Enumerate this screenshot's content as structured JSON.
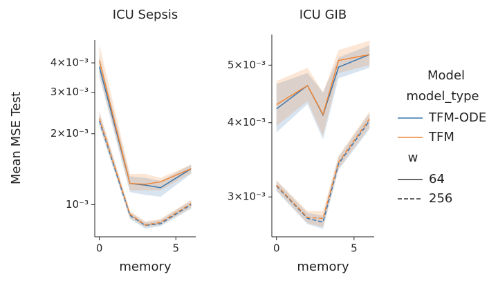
{
  "chart_data": [
    {
      "type": "line",
      "title": "ICU Sepsis",
      "xlabel": "memory",
      "ylabel": "Mean MSE Test",
      "x": [
        0,
        2,
        3,
        4,
        6
      ],
      "xlim": [
        -0.3,
        6.3
      ],
      "xticks": [
        0,
        5
      ],
      "log_y": true,
      "ylim": [
        0.00073,
        0.005
      ],
      "yticks": [
        {
          "value": 0.001,
          "label": "10⁻³"
        },
        {
          "value": 0.002,
          "label": "2×10⁻³"
        },
        {
          "value": 0.003,
          "label": "3×10⁻³"
        },
        {
          "value": 0.004,
          "label": "4×10⁻³"
        }
      ],
      "series": [
        {
          "model_type": "TFM-ODE",
          "w": "64",
          "color": "#3a76af",
          "dash": "solid",
          "values": [
            0.00385,
            0.00123,
            0.00121,
            0.00118,
            0.00142
          ],
          "lower": [
            0.0035,
            0.00113,
            0.0011,
            0.00108,
            0.00135
          ],
          "upper": [
            0.0043,
            0.00132,
            0.0013,
            0.00126,
            0.00148
          ]
        },
        {
          "model_type": "TFM",
          "w": "64",
          "color": "#ef8636",
          "dash": "solid",
          "values": [
            0.00409,
            0.00123,
            0.00122,
            0.00125,
            0.00142
          ],
          "lower": [
            0.0036,
            0.00115,
            0.00115,
            0.00115,
            0.00136
          ],
          "upper": [
            0.0048,
            0.00135,
            0.00135,
            0.0013,
            0.00148
          ]
        },
        {
          "model_type": "TFM-ODE",
          "w": "256",
          "color": "#3a76af",
          "dash": "dashed",
          "values": [
            0.00227,
            0.0009,
            0.000817,
            0.00083,
            0.001
          ],
          "lower": [
            0.00215,
            0.00087,
            0.00079,
            0.00081,
            0.00096
          ],
          "upper": [
            0.00245,
            0.00093,
            0.00084,
            0.00086,
            0.00104
          ]
        },
        {
          "model_type": "TFM",
          "w": "256",
          "color": "#ef8636",
          "dash": "dashed",
          "values": [
            0.00232,
            0.00091,
            0.00082,
            0.00084,
            0.00101
          ],
          "lower": [
            0.0022,
            0.00088,
            0.0008,
            0.00082,
            0.00097
          ],
          "upper": [
            0.0025,
            0.00094,
            0.00085,
            0.00087,
            0.00105
          ]
        }
      ]
    },
    {
      "type": "line",
      "title": "ICU GIB",
      "xlabel": "memory",
      "x": [
        0,
        2,
        3,
        4,
        6
      ],
      "xlim": [
        -0.3,
        6.3
      ],
      "xticks": [
        0,
        5
      ],
      "log_y": true,
      "ylim": [
        0.00257,
        0.00563
      ],
      "yticks": [
        {
          "value": 0.003,
          "label": "3×10⁻³"
        },
        {
          "value": 0.004,
          "label": "4×10⁻³"
        },
        {
          "value": 0.005,
          "label": "5×10⁻³"
        }
      ],
      "series": [
        {
          "model_type": "TFM-ODE",
          "w": "64",
          "color": "#3a76af",
          "dash": "solid",
          "values": [
            0.00422,
            0.00462,
            0.00412,
            0.00496,
            0.00521
          ],
          "lower": [
            0.00385,
            0.0043,
            0.00375,
            0.00475,
            0.00495
          ],
          "upper": [
            0.00465,
            0.00485,
            0.0045,
            0.00515,
            0.0054
          ]
        },
        {
          "model_type": "TFM",
          "w": "64",
          "color": "#ef8636",
          "dash": "solid",
          "values": [
            0.00429,
            0.00462,
            0.00413,
            0.00509,
            0.00521
          ],
          "lower": [
            0.00395,
            0.00435,
            0.0038,
            0.00485,
            0.005
          ],
          "upper": [
            0.0047,
            0.00495,
            0.0045,
            0.0053,
            0.0055
          ]
        },
        {
          "model_type": "TFM-ODE",
          "w": "256",
          "color": "#3a76af",
          "dash": "dashed",
          "values": [
            0.00313,
            0.00276,
            0.00272,
            0.00341,
            0.00403
          ],
          "lower": [
            0.00307,
            0.0027,
            0.00265,
            0.00333,
            0.0039
          ],
          "upper": [
            0.00319,
            0.00282,
            0.00279,
            0.0035,
            0.00415
          ]
        },
        {
          "model_type": "TFM",
          "w": "256",
          "color": "#ef8636",
          "dash": "dashed",
          "values": [
            0.00314,
            0.00277,
            0.00276,
            0.00343,
            0.00406
          ],
          "lower": [
            0.00308,
            0.00271,
            0.00267,
            0.00335,
            0.00393
          ],
          "upper": [
            0.0032,
            0.00284,
            0.00284,
            0.00352,
            0.00418
          ]
        }
      ],
      "legend": {
        "title": "Model",
        "groups": [
          {
            "title": "model_type",
            "entries": [
              {
                "label": "TFM-ODE",
                "color": "#3a76af",
                "dash": "solid"
              },
              {
                "label": "TFM",
                "color": "#ef8636",
                "dash": "solid"
              }
            ]
          },
          {
            "title": "w",
            "entries": [
              {
                "label": "64",
                "color": "#333333",
                "dash": "solid"
              },
              {
                "label": "256",
                "color": "#333333",
                "dash": "dashed"
              }
            ]
          }
        ]
      }
    }
  ]
}
